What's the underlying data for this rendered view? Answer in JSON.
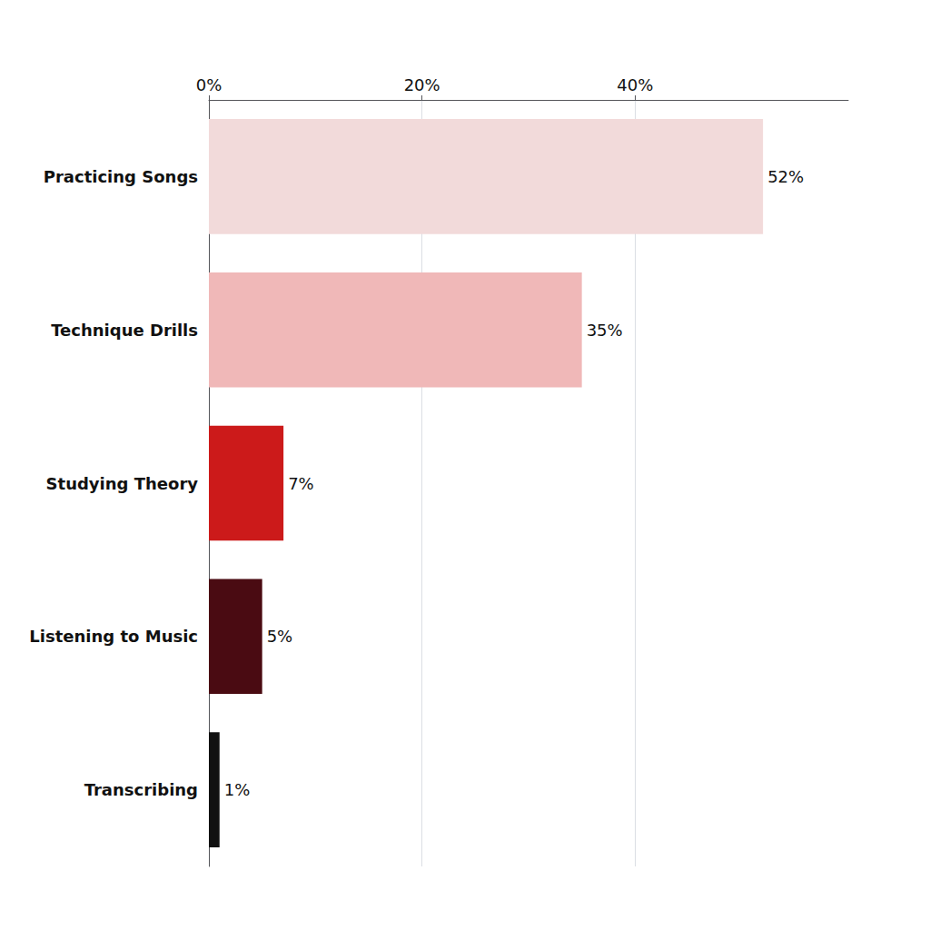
{
  "chart_data": {
    "type": "bar",
    "orientation": "horizontal",
    "categories": [
      "Practicing Songs",
      "Technique Drills",
      "Studying Theory",
      "Listening to Music",
      "Transcribing"
    ],
    "values": [
      52,
      35,
      7,
      5,
      1
    ],
    "value_labels": [
      "52%",
      "35%",
      "7%",
      "5%",
      "1%"
    ],
    "colors": [
      "#f2dada",
      "#f0b8b8",
      "#cc1a1a",
      "#4a0b12",
      "#111111"
    ],
    "xlim": [
      0,
      60
    ],
    "xticks": [
      {
        "value": 0,
        "label": "0%"
      },
      {
        "value": 20,
        "label": "20%"
      },
      {
        "value": 40,
        "label": "40%"
      }
    ],
    "grid": true,
    "data_labels": true
  }
}
